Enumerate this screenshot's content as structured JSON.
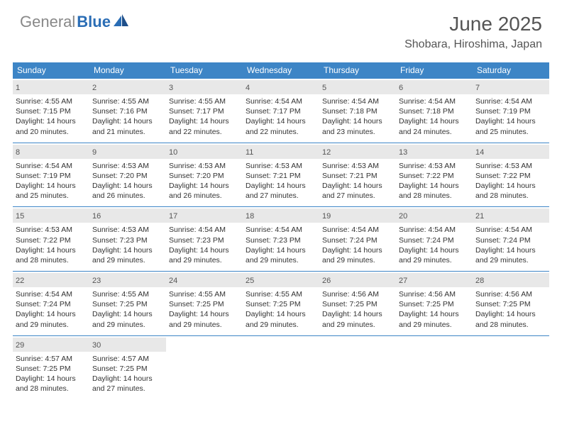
{
  "logo": {
    "text_gray": "General",
    "text_blue": "Blue"
  },
  "title": "June 2025",
  "location": "Shobara, Hiroshima, Japan",
  "colors": {
    "header_bg": "#3d85c6",
    "header_text": "#ffffff",
    "daynum_bg": "#e8e8e8",
    "border": "#3d85c6",
    "logo_gray": "#888888",
    "logo_blue": "#2a6db5",
    "body_text": "#333333",
    "title_text": "#555555"
  },
  "day_headers": [
    "Sunday",
    "Monday",
    "Tuesday",
    "Wednesday",
    "Thursday",
    "Friday",
    "Saturday"
  ],
  "weeks": [
    [
      {
        "n": "1",
        "sr": "Sunrise: 4:55 AM",
        "ss": "Sunset: 7:15 PM",
        "dl": "Daylight: 14 hours and 20 minutes."
      },
      {
        "n": "2",
        "sr": "Sunrise: 4:55 AM",
        "ss": "Sunset: 7:16 PM",
        "dl": "Daylight: 14 hours and 21 minutes."
      },
      {
        "n": "3",
        "sr": "Sunrise: 4:55 AM",
        "ss": "Sunset: 7:17 PM",
        "dl": "Daylight: 14 hours and 22 minutes."
      },
      {
        "n": "4",
        "sr": "Sunrise: 4:54 AM",
        "ss": "Sunset: 7:17 PM",
        "dl": "Daylight: 14 hours and 22 minutes."
      },
      {
        "n": "5",
        "sr": "Sunrise: 4:54 AM",
        "ss": "Sunset: 7:18 PM",
        "dl": "Daylight: 14 hours and 23 minutes."
      },
      {
        "n": "6",
        "sr": "Sunrise: 4:54 AM",
        "ss": "Sunset: 7:18 PM",
        "dl": "Daylight: 14 hours and 24 minutes."
      },
      {
        "n": "7",
        "sr": "Sunrise: 4:54 AM",
        "ss": "Sunset: 7:19 PM",
        "dl": "Daylight: 14 hours and 25 minutes."
      }
    ],
    [
      {
        "n": "8",
        "sr": "Sunrise: 4:54 AM",
        "ss": "Sunset: 7:19 PM",
        "dl": "Daylight: 14 hours and 25 minutes."
      },
      {
        "n": "9",
        "sr": "Sunrise: 4:53 AM",
        "ss": "Sunset: 7:20 PM",
        "dl": "Daylight: 14 hours and 26 minutes."
      },
      {
        "n": "10",
        "sr": "Sunrise: 4:53 AM",
        "ss": "Sunset: 7:20 PM",
        "dl": "Daylight: 14 hours and 26 minutes."
      },
      {
        "n": "11",
        "sr": "Sunrise: 4:53 AM",
        "ss": "Sunset: 7:21 PM",
        "dl": "Daylight: 14 hours and 27 minutes."
      },
      {
        "n": "12",
        "sr": "Sunrise: 4:53 AM",
        "ss": "Sunset: 7:21 PM",
        "dl": "Daylight: 14 hours and 27 minutes."
      },
      {
        "n": "13",
        "sr": "Sunrise: 4:53 AM",
        "ss": "Sunset: 7:22 PM",
        "dl": "Daylight: 14 hours and 28 minutes."
      },
      {
        "n": "14",
        "sr": "Sunrise: 4:53 AM",
        "ss": "Sunset: 7:22 PM",
        "dl": "Daylight: 14 hours and 28 minutes."
      }
    ],
    [
      {
        "n": "15",
        "sr": "Sunrise: 4:53 AM",
        "ss": "Sunset: 7:22 PM",
        "dl": "Daylight: 14 hours and 28 minutes."
      },
      {
        "n": "16",
        "sr": "Sunrise: 4:53 AM",
        "ss": "Sunset: 7:23 PM",
        "dl": "Daylight: 14 hours and 29 minutes."
      },
      {
        "n": "17",
        "sr": "Sunrise: 4:54 AM",
        "ss": "Sunset: 7:23 PM",
        "dl": "Daylight: 14 hours and 29 minutes."
      },
      {
        "n": "18",
        "sr": "Sunrise: 4:54 AM",
        "ss": "Sunset: 7:23 PM",
        "dl": "Daylight: 14 hours and 29 minutes."
      },
      {
        "n": "19",
        "sr": "Sunrise: 4:54 AM",
        "ss": "Sunset: 7:24 PM",
        "dl": "Daylight: 14 hours and 29 minutes."
      },
      {
        "n": "20",
        "sr": "Sunrise: 4:54 AM",
        "ss": "Sunset: 7:24 PM",
        "dl": "Daylight: 14 hours and 29 minutes."
      },
      {
        "n": "21",
        "sr": "Sunrise: 4:54 AM",
        "ss": "Sunset: 7:24 PM",
        "dl": "Daylight: 14 hours and 29 minutes."
      }
    ],
    [
      {
        "n": "22",
        "sr": "Sunrise: 4:54 AM",
        "ss": "Sunset: 7:24 PM",
        "dl": "Daylight: 14 hours and 29 minutes."
      },
      {
        "n": "23",
        "sr": "Sunrise: 4:55 AM",
        "ss": "Sunset: 7:25 PM",
        "dl": "Daylight: 14 hours and 29 minutes."
      },
      {
        "n": "24",
        "sr": "Sunrise: 4:55 AM",
        "ss": "Sunset: 7:25 PM",
        "dl": "Daylight: 14 hours and 29 minutes."
      },
      {
        "n": "25",
        "sr": "Sunrise: 4:55 AM",
        "ss": "Sunset: 7:25 PM",
        "dl": "Daylight: 14 hours and 29 minutes."
      },
      {
        "n": "26",
        "sr": "Sunrise: 4:56 AM",
        "ss": "Sunset: 7:25 PM",
        "dl": "Daylight: 14 hours and 29 minutes."
      },
      {
        "n": "27",
        "sr": "Sunrise: 4:56 AM",
        "ss": "Sunset: 7:25 PM",
        "dl": "Daylight: 14 hours and 29 minutes."
      },
      {
        "n": "28",
        "sr": "Sunrise: 4:56 AM",
        "ss": "Sunset: 7:25 PM",
        "dl": "Daylight: 14 hours and 28 minutes."
      }
    ],
    [
      {
        "n": "29",
        "sr": "Sunrise: 4:57 AM",
        "ss": "Sunset: 7:25 PM",
        "dl": "Daylight: 14 hours and 28 minutes."
      },
      {
        "n": "30",
        "sr": "Sunrise: 4:57 AM",
        "ss": "Sunset: 7:25 PM",
        "dl": "Daylight: 14 hours and 27 minutes."
      },
      null,
      null,
      null,
      null,
      null
    ]
  ]
}
